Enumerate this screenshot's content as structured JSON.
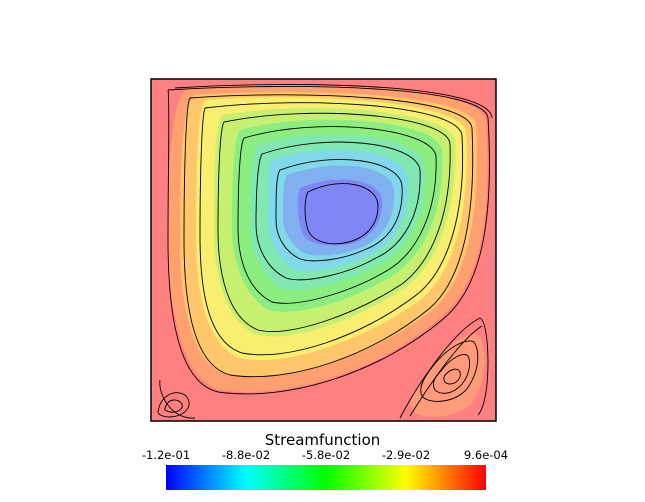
{
  "legend": {
    "title": "Streamfunction",
    "tick_labels": [
      "-1.2e-01",
      "-8.8e-02",
      "-5.8e-02",
      "-2.9e-02",
      "9.6e-04"
    ]
  },
  "colormap": {
    "stops": [
      "#0000ff",
      "#00ffff",
      "#00ff00",
      "#ffff00",
      "#ff0000"
    ],
    "panel_background": "#ff8080",
    "contour_line_color": "#000000"
  }
}
